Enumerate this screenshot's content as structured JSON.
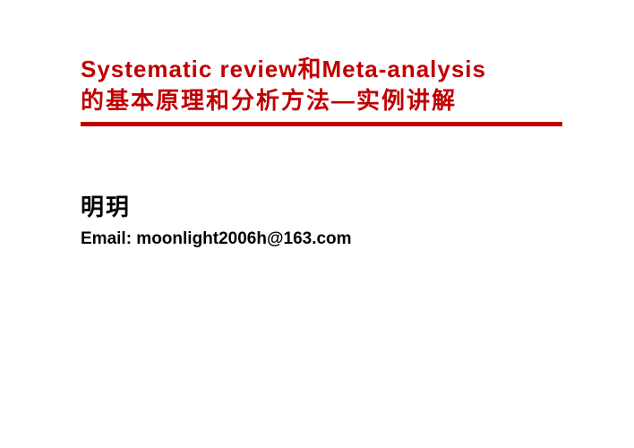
{
  "title": {
    "line1": "Systematic review和Meta-analysis",
    "line2": "的基本原理和分析方法—实例讲解",
    "color": "#c00000",
    "fontsize": 26
  },
  "divider": {
    "color": "#c00000",
    "height": 5
  },
  "presenter": {
    "name": "明玥",
    "color": "#000000",
    "fontsize": 26
  },
  "email": {
    "label": "Email: moonlight2006h@163.com",
    "color": "#000000",
    "fontsize": 19
  },
  "background_color": "#ffffff"
}
